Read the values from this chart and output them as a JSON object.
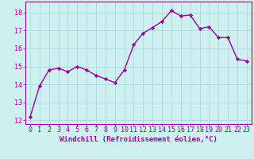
{
  "x": [
    0,
    1,
    2,
    3,
    4,
    5,
    6,
    7,
    8,
    9,
    10,
    11,
    12,
    13,
    14,
    15,
    16,
    17,
    18,
    19,
    20,
    21,
    22,
    23
  ],
  "y": [
    12.2,
    13.9,
    14.8,
    14.9,
    14.7,
    15.0,
    14.8,
    14.5,
    14.3,
    14.1,
    14.8,
    16.2,
    16.85,
    17.15,
    17.5,
    18.1,
    17.8,
    17.85,
    17.1,
    17.2,
    16.6,
    16.6,
    15.4,
    15.3
  ],
  "xlabel": "Windchill (Refroidissement éolien,°C)",
  "ylim": [
    11.8,
    18.6
  ],
  "xlim": [
    -0.5,
    23.5
  ],
  "yticks": [
    12,
    13,
    14,
    15,
    16,
    17,
    18
  ],
  "xticks": [
    0,
    1,
    2,
    3,
    4,
    5,
    6,
    7,
    8,
    9,
    10,
    11,
    12,
    13,
    14,
    15,
    16,
    17,
    18,
    19,
    20,
    21,
    22,
    23
  ],
  "line_color": "#990099",
  "marker": "D",
  "marker_size": 2.2,
  "bg_color": "#cff0f0",
  "grid_color": "#aadddd",
  "xlabel_fontsize": 6.5,
  "tick_fontsize": 6.0,
  "line_width": 1.0
}
